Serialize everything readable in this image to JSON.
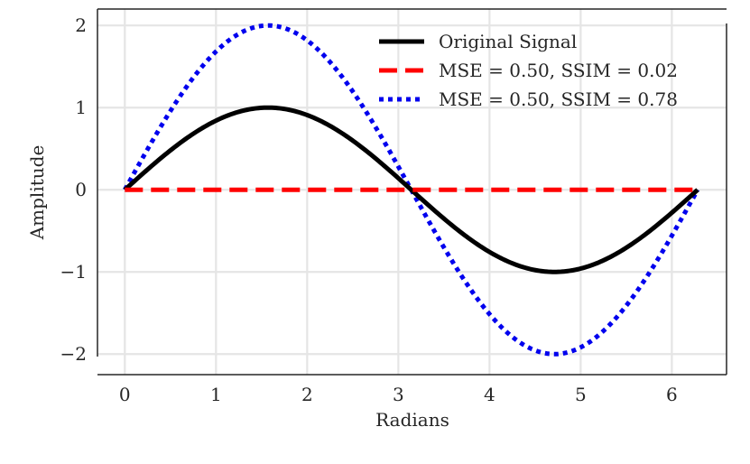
{
  "chart_data": {
    "type": "line",
    "title": "",
    "xlabel": "Radians",
    "ylabel": "Amplitude",
    "xlim": [
      -0.3,
      6.6
    ],
    "ylim": [
      -2.25,
      2.2
    ],
    "x_ticks": [
      0,
      1,
      2,
      3,
      4,
      5,
      6
    ],
    "x_tick_labels": [
      "0",
      "1",
      "2",
      "3",
      "4",
      "5",
      "6"
    ],
    "y_ticks": [
      -2,
      -1,
      0,
      1,
      2
    ],
    "y_tick_labels": [
      "−2",
      "−1",
      "0",
      "1",
      "2"
    ],
    "grid": true,
    "legend_position": "top-right",
    "x_range": [
      0,
      6.283185
    ],
    "series": [
      {
        "name": "Original Signal",
        "function": "sin(x)",
        "color": "#000000",
        "style": "solid",
        "x": [
          0,
          0.785,
          1.571,
          2.356,
          3.142,
          3.927,
          4.712,
          5.498,
          6.283
        ],
        "values": [
          0,
          0.707,
          1,
          0.707,
          0,
          -0.707,
          -1,
          -0.707,
          0
        ]
      },
      {
        "name": "MSE = 0.50, SSIM = 0.02",
        "function": "0",
        "color": "#ff0000",
        "style": "dashed",
        "x": [
          0,
          6.283
        ],
        "values": [
          0,
          0
        ]
      },
      {
        "name": "MSE = 0.50, SSIM = 0.78",
        "function": "2*sin(x)",
        "color": "#0000ee",
        "style": "dotted",
        "x": [
          0,
          0.785,
          1.571,
          2.356,
          3.142,
          3.927,
          4.712,
          5.498,
          6.283
        ],
        "values": [
          0,
          1.414,
          2,
          1.414,
          0,
          -1.414,
          -2,
          -1.414,
          0
        ]
      }
    ]
  }
}
